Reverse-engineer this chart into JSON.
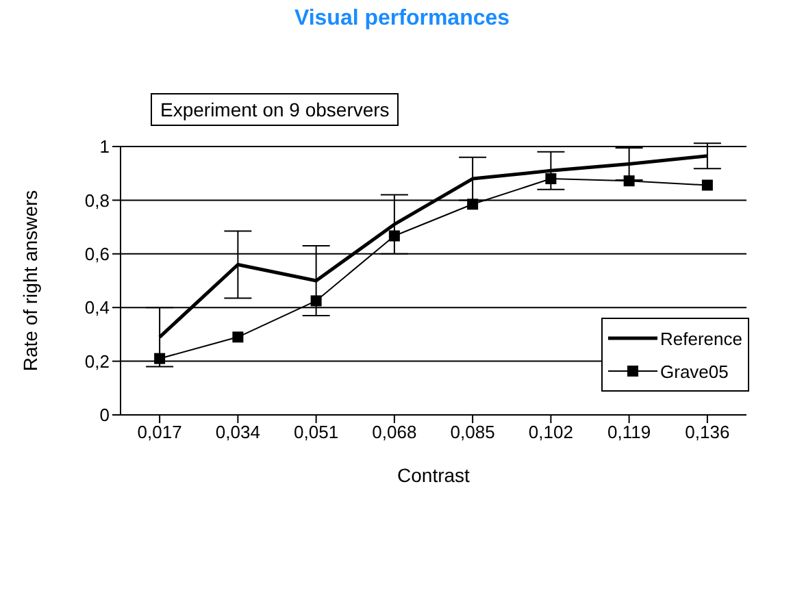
{
  "chart_data": {
    "type": "line",
    "title": "Visual performances",
    "xlabel": "Contrast",
    "ylabel": "Rate of right answers",
    "annotations": [
      "Experiment on 9 observers"
    ],
    "categories": [
      "0,017",
      "0,034",
      "0,051",
      "0,068",
      "0,085",
      "0,102",
      "0,119",
      "0,136"
    ],
    "series": [
      {
        "name": "Reference",
        "color": "#000000",
        "marker": "none",
        "values": [
          0.29,
          0.56,
          0.5,
          0.71,
          0.88,
          0.91,
          0.935,
          0.965
        ],
        "errors": [
          0.11,
          0.125,
          0.13,
          0.11,
          0.08,
          0.07,
          0.06,
          0.047
        ]
      },
      {
        "name": "Grave05",
        "color": "#000000",
        "marker": "square",
        "values": [
          0.21,
          0.29,
          0.425,
          0.667,
          0.785,
          0.88,
          0.872,
          0.856
        ]
      }
    ],
    "ylim": [
      0,
      1
    ],
    "yticks": [
      {
        "value": 0,
        "label": "0"
      },
      {
        "value": 0.2,
        "label": "0,2"
      },
      {
        "value": 0.4,
        "label": "0,4"
      },
      {
        "value": 0.6,
        "label": "0,6"
      },
      {
        "value": 0.8,
        "label": "0,8"
      },
      {
        "value": 1,
        "label": "1"
      }
    ],
    "grid": "y",
    "legend": "right"
  }
}
